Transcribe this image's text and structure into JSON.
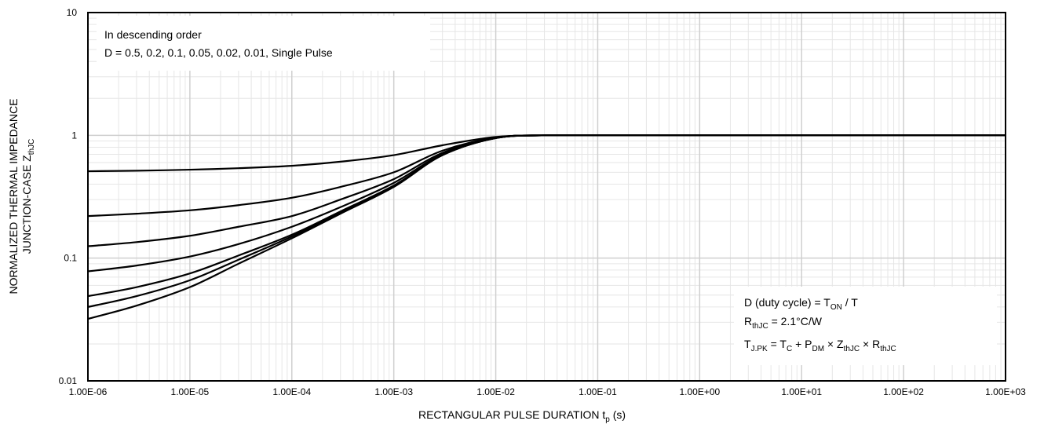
{
  "chart_data": {
    "type": "line",
    "x_scale": "log",
    "y_scale": "log",
    "xlim": [
      1e-06,
      1000
    ],
    "ylim": [
      0.01,
      10
    ],
    "grid": "major and minor (log)",
    "x_ticks": [
      {
        "value": 1e-06,
        "label": "1.00E-06"
      },
      {
        "value": 1e-05,
        "label": "1.00E-05"
      },
      {
        "value": 0.0001,
        "label": "1.00E-04"
      },
      {
        "value": 0.001,
        "label": "1.00E-03"
      },
      {
        "value": 0.01,
        "label": "1.00E-02"
      },
      {
        "value": 0.1,
        "label": "1.00E-01"
      },
      {
        "value": 1,
        "label": "1.00E+00"
      },
      {
        "value": 10,
        "label": "1.00E+01"
      },
      {
        "value": 100,
        "label": "1.00E+02"
      },
      {
        "value": 1000,
        "label": "1.00E+03"
      }
    ],
    "y_ticks": [
      {
        "value": 0.01,
        "label": "0.01"
      },
      {
        "value": 0.1,
        "label": "0.1"
      },
      {
        "value": 1,
        "label": "1"
      },
      {
        "value": 10,
        "label": "10"
      }
    ],
    "xlabel": {
      "main": "RECTANGULAR PULSE DURATION  t",
      "sub": "p",
      "tail": " (s)"
    },
    "ylabel": {
      "line1": "NORMALIZED THERMAL IMPEDANCE",
      "line2": "JUNCTION-CASE  Z",
      "line2_sub": "thJC"
    },
    "annotation_top": {
      "line1": "In descending order",
      "line2": "D = 0.5, 0.2, 0.1, 0.05, 0.02, 0.01, Single Pulse"
    },
    "annotation_bottom": {
      "line1": [
        {
          "t": "D (duty cycle) = T"
        },
        {
          "t": "ON",
          "sub": true
        },
        {
          "t": " / T"
        }
      ],
      "line2": [
        {
          "t": "R"
        },
        {
          "t": "thJC",
          "sub": true
        },
        {
          "t": " = 2.1°C/W"
        }
      ],
      "line3": [
        {
          "t": "T"
        },
        {
          "t": "J.PK",
          "sub": true
        },
        {
          "t": " = T"
        },
        {
          "t": "C",
          "sub": true
        },
        {
          "t": " + P"
        },
        {
          "t": "DM",
          "sub": true
        },
        {
          "t": " × Z"
        },
        {
          "t": "thJC",
          "sub": true
        },
        {
          "t": " × R"
        },
        {
          "t": "thJC",
          "sub": true
        }
      ]
    },
    "series_x": [
      1e-06,
      3e-06,
      1e-05,
      3e-05,
      0.0001,
      0.0003,
      0.001,
      0.003,
      0.01,
      0.03,
      0.1,
      1,
      10,
      100,
      1000
    ],
    "series": [
      {
        "D": 0.5,
        "values": [
          0.51,
          0.515,
          0.525,
          0.54,
          0.565,
          0.61,
          0.69,
          0.83,
          0.97,
          1.0,
          1.0,
          1.0,
          1.0,
          1.0,
          1.0
        ]
      },
      {
        "D": 0.2,
        "values": [
          0.22,
          0.23,
          0.245,
          0.27,
          0.31,
          0.38,
          0.5,
          0.75,
          0.96,
          1.0,
          1.0,
          1.0,
          1.0,
          1.0,
          1.0
        ]
      },
      {
        "D": 0.1,
        "values": [
          0.125,
          0.135,
          0.152,
          0.18,
          0.22,
          0.3,
          0.44,
          0.72,
          0.955,
          1.0,
          1.0,
          1.0,
          1.0,
          1.0,
          1.0
        ]
      },
      {
        "D": 0.05,
        "values": [
          0.078,
          0.087,
          0.103,
          0.13,
          0.18,
          0.26,
          0.41,
          0.7,
          0.95,
          1.0,
          1.0,
          1.0,
          1.0,
          1.0,
          1.0
        ]
      },
      {
        "D": 0.02,
        "values": [
          0.049,
          0.058,
          0.075,
          0.105,
          0.155,
          0.24,
          0.39,
          0.69,
          0.95,
          1.0,
          1.0,
          1.0,
          1.0,
          1.0,
          1.0
        ]
      },
      {
        "D": 0.01,
        "values": [
          0.04,
          0.049,
          0.066,
          0.097,
          0.15,
          0.235,
          0.385,
          0.69,
          0.95,
          1.0,
          1.0,
          1.0,
          1.0,
          1.0,
          1.0
        ]
      },
      {
        "D": "Single Pulse",
        "values": [
          0.032,
          0.041,
          0.058,
          0.09,
          0.145,
          0.23,
          0.38,
          0.69,
          0.95,
          1.0,
          1.0,
          1.0,
          1.0,
          1.0,
          1.0
        ]
      }
    ]
  }
}
